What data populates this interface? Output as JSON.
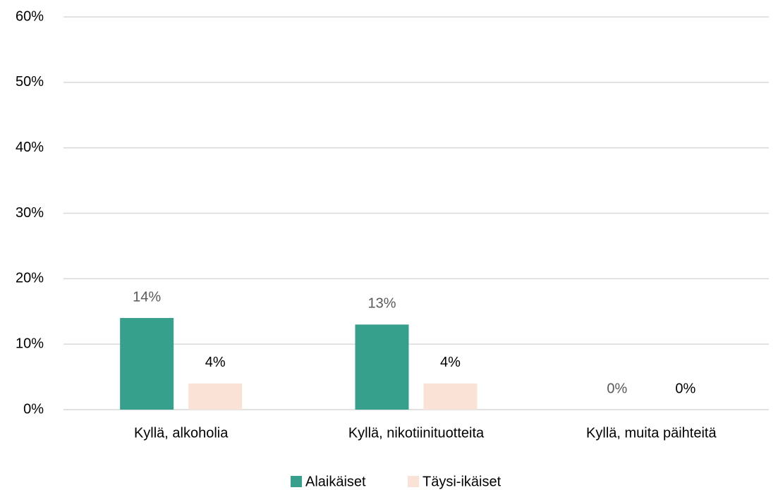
{
  "chart_data": {
    "type": "bar",
    "categories": [
      "Kyllä, alkoholia",
      "Kyllä, nikotiinituotteita",
      "Kyllä, muita päihteitä"
    ],
    "series": [
      {
        "name": "Alaikäiset",
        "color": "#37a08c",
        "values": [
          14,
          13,
          0
        ],
        "value_labels": [
          "14%",
          "13%",
          "0%"
        ]
      },
      {
        "name": "Täysi-ikäiset",
        "color": "#fae3d6",
        "values": [
          4,
          4,
          0
        ],
        "value_labels": [
          "4%",
          "4%",
          "0%"
        ]
      }
    ],
    "ylim": [
      0,
      60
    ],
    "yticks": [
      {
        "value": 0,
        "label": "0%"
      },
      {
        "value": 10,
        "label": "10%"
      },
      {
        "value": 20,
        "label": "20%"
      },
      {
        "value": 30,
        "label": "30%"
      },
      {
        "value": 40,
        "label": "40%"
      },
      {
        "value": 50,
        "label": "50%"
      },
      {
        "value": 60,
        "label": "60%"
      }
    ],
    "grid": true,
    "legend": "bottom"
  }
}
